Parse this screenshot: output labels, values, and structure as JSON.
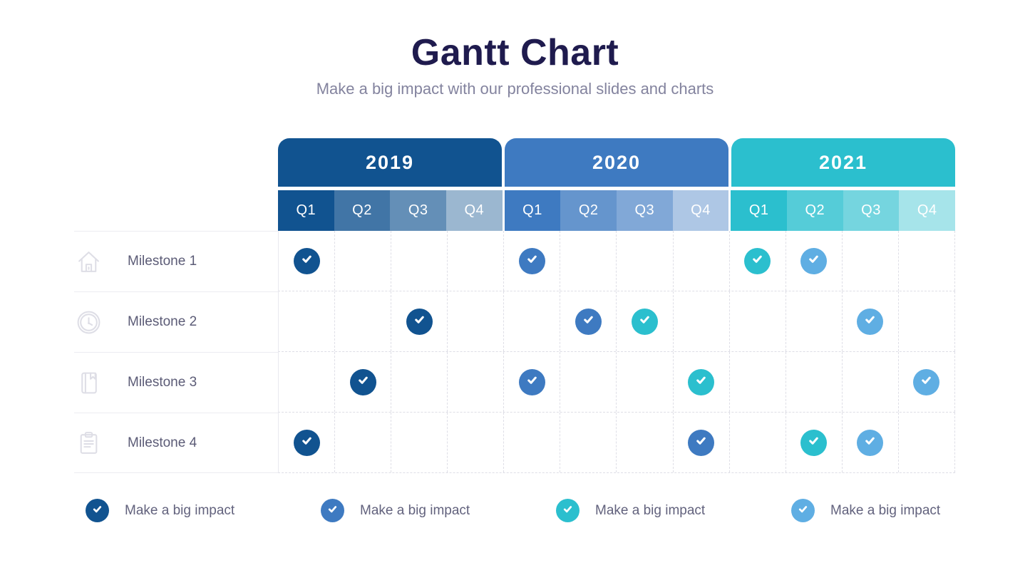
{
  "title": "Gantt Chart",
  "subtitle": "Make a big impact with our professional slides and charts",
  "colors": {
    "navy": "#115390",
    "blue": "#3E7AC1",
    "teal": "#2BBFCE",
    "sky": "#5FAEE3",
    "title_text": "#1F1B4E",
    "subtitle_text": "#83839E",
    "milestone_text": "#5B5B76"
  },
  "table": {
    "years": [
      {
        "label": "2019",
        "color": "#115390"
      },
      {
        "label": "2020",
        "color": "#3E7AC1"
      },
      {
        "label": "2021",
        "color": "#2BBFCE"
      }
    ],
    "quarters": [
      "Q1",
      "Q2",
      "Q3",
      "Q4"
    ],
    "quarter_opacities": [
      1,
      0.8,
      0.65,
      0.42
    ]
  },
  "chart_data": {
    "type": "table",
    "title": "Gantt Chart",
    "columns": [
      "2019 Q1",
      "2019 Q2",
      "2019 Q3",
      "2019 Q4",
      "2020 Q1",
      "2020 Q2",
      "2020 Q3",
      "2020 Q4",
      "2021 Q1",
      "2021 Q2",
      "2021 Q3",
      "2021 Q4"
    ],
    "rows": [
      {
        "milestone": "Milestone 1",
        "icon": "home-icon",
        "checks": [
          {
            "col": "2019 Q1",
            "color": "#115390"
          },
          {
            "col": "2020 Q1",
            "color": "#3E7AC1"
          },
          {
            "col": "2021 Q1",
            "color": "#2BBFCE"
          },
          {
            "col": "2021 Q2",
            "color": "#5FAEE3"
          }
        ]
      },
      {
        "milestone": "Milestone 2",
        "icon": "clock-icon",
        "checks": [
          {
            "col": "2019 Q3",
            "color": "#115390"
          },
          {
            "col": "2020 Q2",
            "color": "#3E7AC1"
          },
          {
            "col": "2020 Q3",
            "color": "#2BBFCE"
          },
          {
            "col": "2021 Q3",
            "color": "#5FAEE3"
          }
        ]
      },
      {
        "milestone": "Milestone 3",
        "icon": "book-icon",
        "checks": [
          {
            "col": "2019 Q2",
            "color": "#115390"
          },
          {
            "col": "2020 Q1",
            "color": "#3E7AC1"
          },
          {
            "col": "2020 Q4",
            "color": "#2BBFCE"
          },
          {
            "col": "2021 Q4",
            "color": "#5FAEE3"
          }
        ]
      },
      {
        "milestone": "Milestone 4",
        "icon": "clipboard-icon",
        "checks": [
          {
            "col": "2019 Q1",
            "color": "#115390"
          },
          {
            "col": "2020 Q4",
            "color": "#3E7AC1"
          },
          {
            "col": "2021 Q2",
            "color": "#2BBFCE"
          },
          {
            "col": "2021 Q3",
            "color": "#5FAEE3"
          }
        ]
      }
    ]
  },
  "legend": [
    {
      "label": "Make a big impact",
      "color": "#115390"
    },
    {
      "label": "Make a big impact",
      "color": "#3E7AC1"
    },
    {
      "label": "Make a big impact",
      "color": "#2BBFCE"
    },
    {
      "label": "Make a big impact",
      "color": "#5FAEE3"
    }
  ]
}
